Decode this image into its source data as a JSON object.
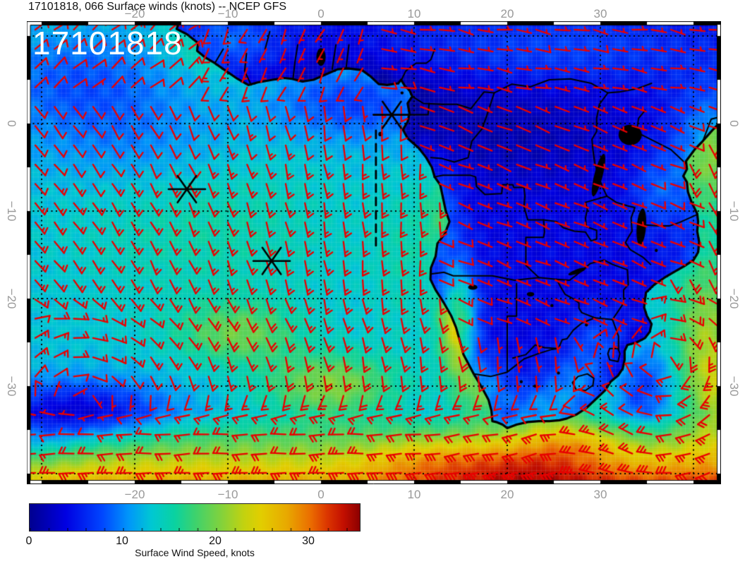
{
  "chart_data": {
    "type": "map",
    "subtype": "wind_barb_field_over_geographic_map",
    "title": "17101818, 066 Surface winds (knots) -- NCEP GFS",
    "overlay_label": "17101818",
    "model": "NCEP GFS",
    "cycle": "17101818",
    "forecast_hour": "066",
    "extent": {
      "lon_min": -31.6,
      "lon_max": 43.0,
      "lat_min": -41.2,
      "lat_max": 11.7
    },
    "grid_interval_deg": 10,
    "lon_ticks": [
      {
        "label": "−20",
        "lon": -20
      },
      {
        "label": "−10",
        "lon": -10
      },
      {
        "label": "0",
        "lon": 0
      },
      {
        "label": "10",
        "lon": 10
      },
      {
        "label": "20",
        "lon": 20
      },
      {
        "label": "30",
        "lon": 30
      }
    ],
    "lat_ticks": [
      {
        "label": "0",
        "lat": 0
      },
      {
        "label": "−10",
        "lat": -10
      },
      {
        "label": "−20",
        "lat": -20
      },
      {
        "label": "−30",
        "lat": -30
      }
    ],
    "colorbar": {
      "caption": "Surface Wind Speed, knots",
      "min": 0,
      "max": 36.2,
      "ticks": [
        {
          "label": "0",
          "value": 0
        },
        {
          "label": "10",
          "value": 10
        },
        {
          "label": "20",
          "value": 20
        },
        {
          "label": "30",
          "value": 30
        }
      ],
      "gradient": [
        [
          "#00008f",
          0
        ],
        [
          "#0000e2",
          11
        ],
        [
          "#0046ff",
          22
        ],
        [
          "#0096fa",
          30
        ],
        [
          "#00c8d2",
          37
        ],
        [
          "#0ad2a0",
          44
        ],
        [
          "#3cd26e",
          50
        ],
        [
          "#82d23c",
          58
        ],
        [
          "#c3d20f",
          65
        ],
        [
          "#e2ce00",
          70
        ],
        [
          "#e8a800",
          78
        ],
        [
          "#eb6e00",
          85
        ],
        [
          "#dc3700",
          90
        ],
        [
          "#c30f00",
          95
        ],
        [
          "#8c0000",
          100
        ]
      ]
    },
    "markers": {
      "asterisks": [
        {
          "lon": -14.4,
          "lat": -7.5
        },
        {
          "lon": -5.3,
          "lat": -15.7
        },
        {
          "lon": 7.6,
          "lat": 1.0
        }
      ],
      "dot": {
        "lon": 6.4,
        "lat": -1.2
      },
      "dashed_track": {
        "lon": 5.9,
        "lat_from": -0.8,
        "lat_to": -14.5
      }
    },
    "wind_samples": [
      {
        "lon": -25,
        "lat": 5,
        "from": "NE",
        "knots": 10
      },
      {
        "lon": -25,
        "lat": -8,
        "from": "ESE",
        "knots": 15
      },
      {
        "lon": 5,
        "lat": -12,
        "from": "S",
        "knots": 15
      },
      {
        "lon": -26,
        "lat": -33,
        "from": "VAR",
        "knots": 4
      },
      {
        "lon": -5,
        "lat": -27,
        "from": "E",
        "knots": 18
      },
      {
        "lon": 0,
        "lat": -38,
        "from": "W",
        "knots": 25
      },
      {
        "lon": 20,
        "lat": -40,
        "from": "W",
        "knots": 30
      },
      {
        "lon": 30,
        "lat": -30,
        "from": "N",
        "knots": 15
      },
      {
        "lon": 41,
        "lat": -25,
        "from": "SSE",
        "knots": 23
      },
      {
        "lon": 25,
        "lat": -3,
        "from": "E",
        "knots": 4
      }
    ],
    "field_features": [
      "Calm core of South Atlantic High (~3-5 kt, dark blue) near 26W 33S",
      "SE trade winds 12-17 kt (cyan/teal) over tropical South Atlantic",
      "Wind maximum streak 20-25 kt (yellow-green) from about 12W 22S toward 10E 35S",
      "Strong westerlies 25-35 kt (yellow/orange/red) south of 35S",
      "Strong southerlies 20-25 kt (yellow) along the eastern map edge / Mozambique Channel",
      "Light winds 2-8 kt (dark blue) over central and southern African interior",
      "Locally enhanced winds (green/yellow) along Namibian coast"
    ]
  },
  "colors": {
    "barb": "#e80000",
    "coast": "#000000",
    "grid_dots": "#000000",
    "tick_label": "#999999",
    "title_text": "#111111",
    "overlay_text": "#ffffff",
    "background": "#ffffff",
    "marker": "#000000"
  }
}
